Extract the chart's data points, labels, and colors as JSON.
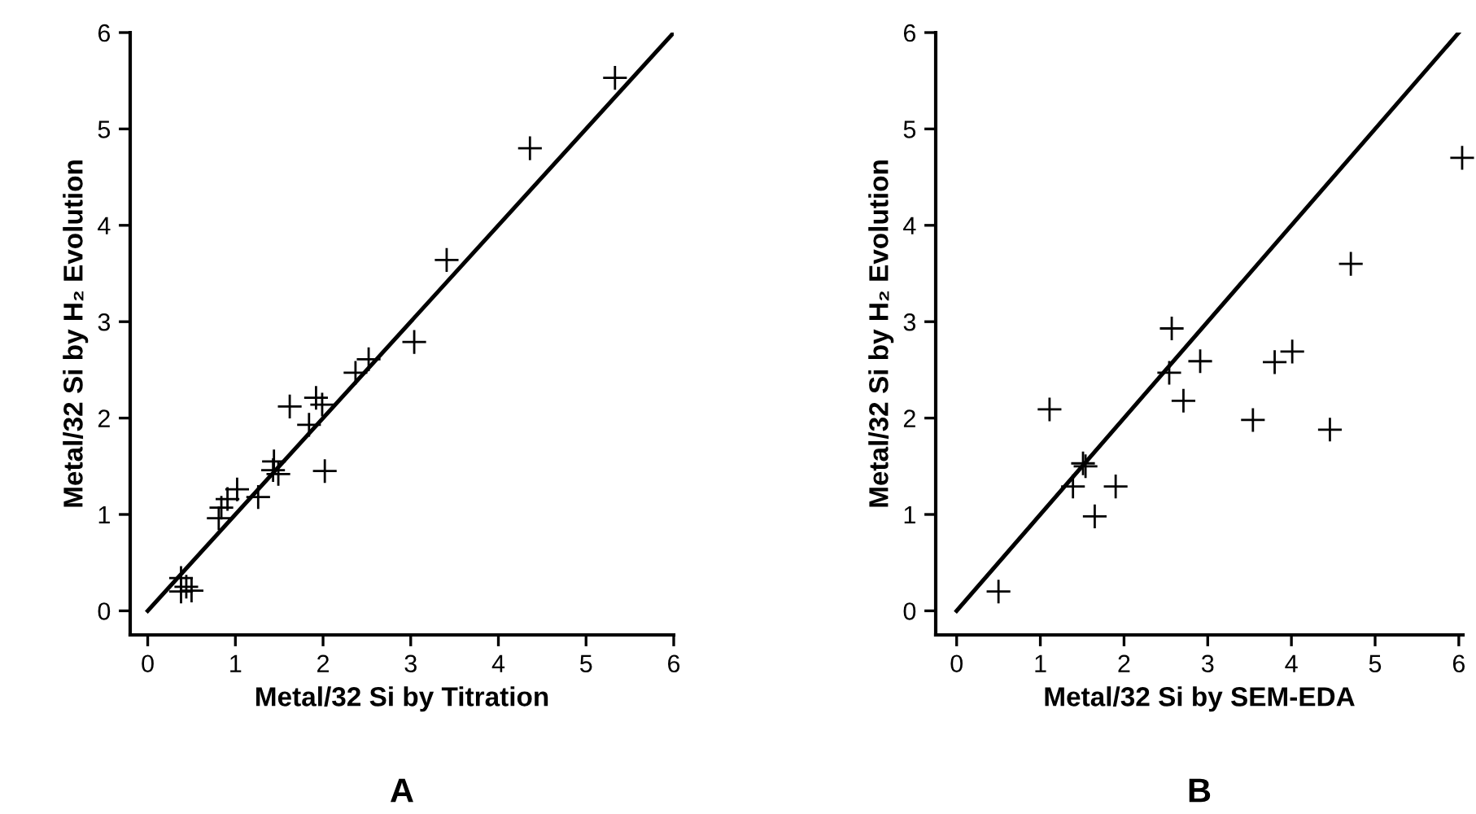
{
  "chart_data": [
    {
      "type": "scatter",
      "title": "A",
      "xlabel": "Metal/32 Si by Titration",
      "ylabel": "Metal/32 Si by H₂ Evolution",
      "xlim": [
        -0.2,
        6
      ],
      "ylim": [
        -0.25,
        6
      ],
      "xticks": [
        0,
        1,
        2,
        3,
        4,
        5,
        6
      ],
      "yticks": [
        0,
        1,
        2,
        3,
        4,
        5,
        6
      ],
      "grid": false,
      "series": [
        {
          "marker": "cross",
          "color": "#000000",
          "x": [
            5.33,
            4.36,
            3.41,
            3.04,
            2.52,
            2.37,
            1.92,
            1.99,
            1.62,
            1.84,
            2.02,
            1.44,
            1.43,
            1.49,
            1.26,
            1.02,
            0.91,
            0.84,
            0.81,
            0.38,
            0.44,
            0.5,
            0.38
          ],
          "values": [
            5.53,
            4.8,
            3.64,
            2.79,
            2.61,
            2.47,
            2.21,
            2.14,
            2.12,
            1.93,
            1.45,
            1.55,
            1.46,
            1.42,
            1.18,
            1.26,
            1.16,
            1.07,
            0.96,
            0.34,
            0.25,
            0.21,
            0.2
          ]
        },
        {
          "type": "line",
          "color": "#000000",
          "x": [
            0,
            6
          ],
          "values": [
            0,
            6
          ]
        }
      ]
    },
    {
      "type": "scatter",
      "title": "B",
      "xlabel": "Metal/32 Si by SEM-EDA",
      "ylabel": "Metal/32 Si by H₂ Evolution",
      "xlim": [
        -0.25,
        6.05
      ],
      "ylim": [
        -0.25,
        6
      ],
      "xticks": [
        0,
        1,
        2,
        3,
        4,
        5,
        6
      ],
      "yticks": [
        0,
        1,
        2,
        3,
        4,
        5,
        6
      ],
      "grid": false,
      "series": [
        {
          "marker": "cross",
          "color": "#000000",
          "x": [
            6.04,
            4.71,
            2.57,
            2.91,
            3.8,
            4.01,
            2.54,
            2.71,
            1.11,
            3.54,
            4.46,
            1.51,
            1.54,
            1.39,
            1.9,
            1.65,
            0.5
          ],
          "values": [
            4.7,
            3.6,
            2.93,
            2.59,
            2.58,
            2.69,
            2.47,
            2.18,
            2.09,
            1.98,
            1.88,
            1.53,
            1.5,
            1.29,
            1.29,
            0.98,
            0.2
          ]
        },
        {
          "type": "line",
          "color": "#000000",
          "x": [
            0,
            6
          ],
          "values": [
            0,
            6
          ]
        }
      ]
    }
  ]
}
